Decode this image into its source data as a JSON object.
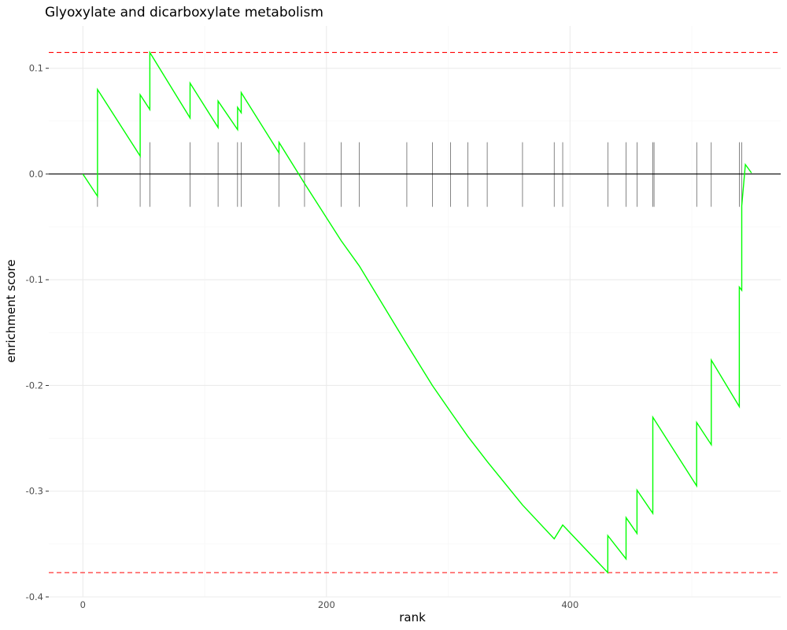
{
  "chart_data": {
    "type": "line",
    "title": "Glyoxylate and dicarboxylate metabolism",
    "xlabel": "rank",
    "ylabel": "enrichment score",
    "xlim": [
      -28,
      573
    ],
    "ylim": [
      -0.4,
      0.14
    ],
    "x_ticks": [
      0,
      200,
      400
    ],
    "x_tick_labels": [
      "0",
      "200",
      "400"
    ],
    "y_ticks": [
      0.1,
      0.0,
      -0.1,
      -0.2,
      -0.3,
      -0.4
    ],
    "y_tick_labels": [
      "0.1",
      "0.0",
      "-0.1",
      "-0.2",
      "-0.3",
      "-0.4"
    ],
    "grid": true,
    "upper_bound": 0.115,
    "lower_bound": -0.377,
    "zero_line": 0,
    "series": [
      {
        "color": "#00ff00",
        "x": [
          0,
          12,
          12,
          47,
          47,
          55,
          55,
          88,
          88,
          111,
          111,
          127,
          127,
          130,
          130,
          161,
          161,
          182,
          212,
          227,
          266,
          287,
          302,
          316,
          332,
          361,
          387,
          394,
          431,
          431,
          446,
          446,
          455,
          455,
          468,
          468,
          504,
          504,
          516,
          516,
          539,
          539,
          541,
          541,
          544,
          544,
          549
        ],
        "y": [
          0,
          -0.021,
          0.08,
          0.017,
          0.075,
          0.061,
          0.115,
          0.053,
          0.086,
          0.044,
          0.069,
          0.042,
          0.063,
          0.058,
          0.077,
          0.02,
          0.03,
          -0.009,
          -0.063,
          -0.087,
          -0.161,
          -0.2,
          -0.225,
          -0.248,
          -0.272,
          -0.313,
          -0.345,
          -0.332,
          -0.377,
          -0.342,
          -0.364,
          -0.325,
          -0.34,
          -0.299,
          -0.321,
          -0.23,
          -0.295,
          -0.235,
          -0.256,
          -0.176,
          -0.22,
          -0.107,
          -0.11,
          -0.03,
          0.009,
          0.009,
          0.001
        ]
      }
    ],
    "hits": [
      12,
      47,
      55,
      88,
      111,
      127,
      130,
      161,
      182,
      212,
      227,
      266,
      287,
      302,
      316,
      332,
      361,
      387,
      394,
      431,
      446,
      455,
      468,
      469,
      504,
      516,
      539,
      541
    ]
  }
}
